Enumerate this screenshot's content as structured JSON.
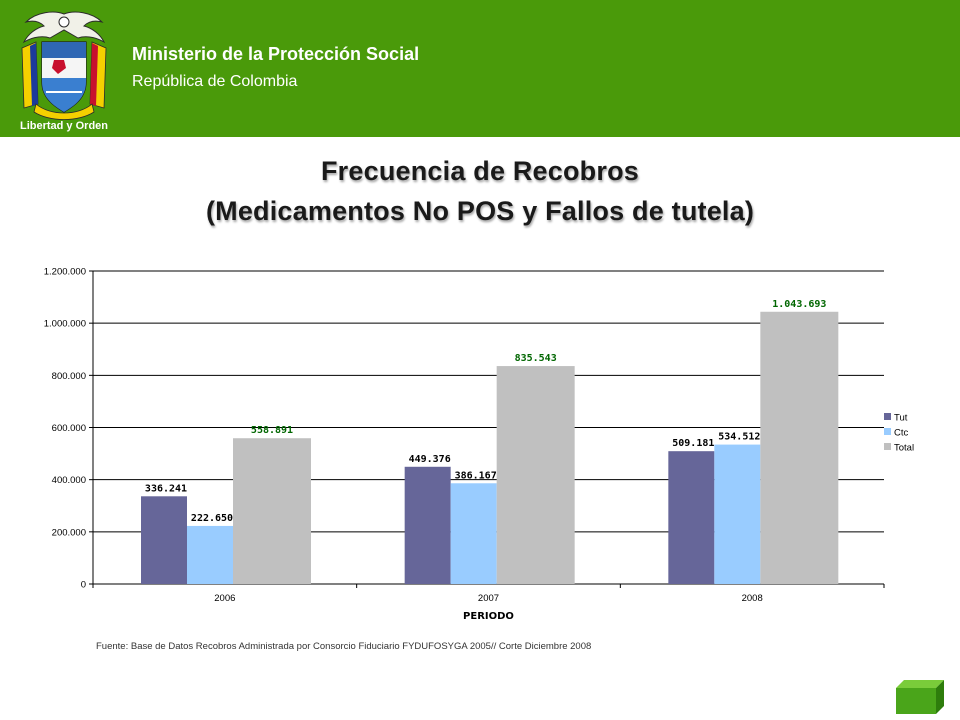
{
  "header": {
    "ministry": "Ministerio de la Protección Social",
    "republic": "República de Colombia",
    "logo_motto": "Libertad y Orden",
    "logo_icon": "colombia-coat-of-arms",
    "background_color": "#4a9a0a"
  },
  "title_line1": "Frecuencia de Recobros",
  "title_line2": "(Medicamentos No POS y Fallos de tutela)",
  "chart_data": {
    "type": "bar",
    "categories": [
      "2006",
      "2007",
      "2008"
    ],
    "series": [
      {
        "name": "Tut",
        "values": [
          336241,
          449376,
          509181
        ],
        "labels": [
          "336.241",
          "449.376",
          "509.181"
        ],
        "color": "#666699",
        "label_color": "#000000"
      },
      {
        "name": "Ctc",
        "values": [
          222650,
          386167,
          534512
        ],
        "labels": [
          "222.650",
          "386.167",
          "534.512"
        ],
        "color": "#99ccff",
        "label_color": "#000000"
      },
      {
        "name": "Total",
        "values": [
          558891,
          835543,
          1043693
        ],
        "labels": [
          "558.891",
          "835.543",
          "1.043.693"
        ],
        "color": "#c0c0c0",
        "label_color": "#006600"
      }
    ],
    "xlabel": "PERIODO",
    "ylabel": "",
    "ylim": [
      0,
      1200000
    ],
    "yticks": [
      0,
      200000,
      400000,
      600000,
      800000,
      1000000,
      1200000
    ],
    "ytick_labels": [
      "0",
      "200.000",
      "400.000",
      "600.000",
      "800.000",
      "1.000.000",
      "1.200.000"
    ],
    "grid": true,
    "legend_position": "right"
  },
  "source_note": "Fuente: Base de Datos Recobros Administrada por Consorcio Fiduciario FYDUFOSYGA 2005// Corte Diciembre 2008",
  "nav_icon": "green-cube-icon"
}
